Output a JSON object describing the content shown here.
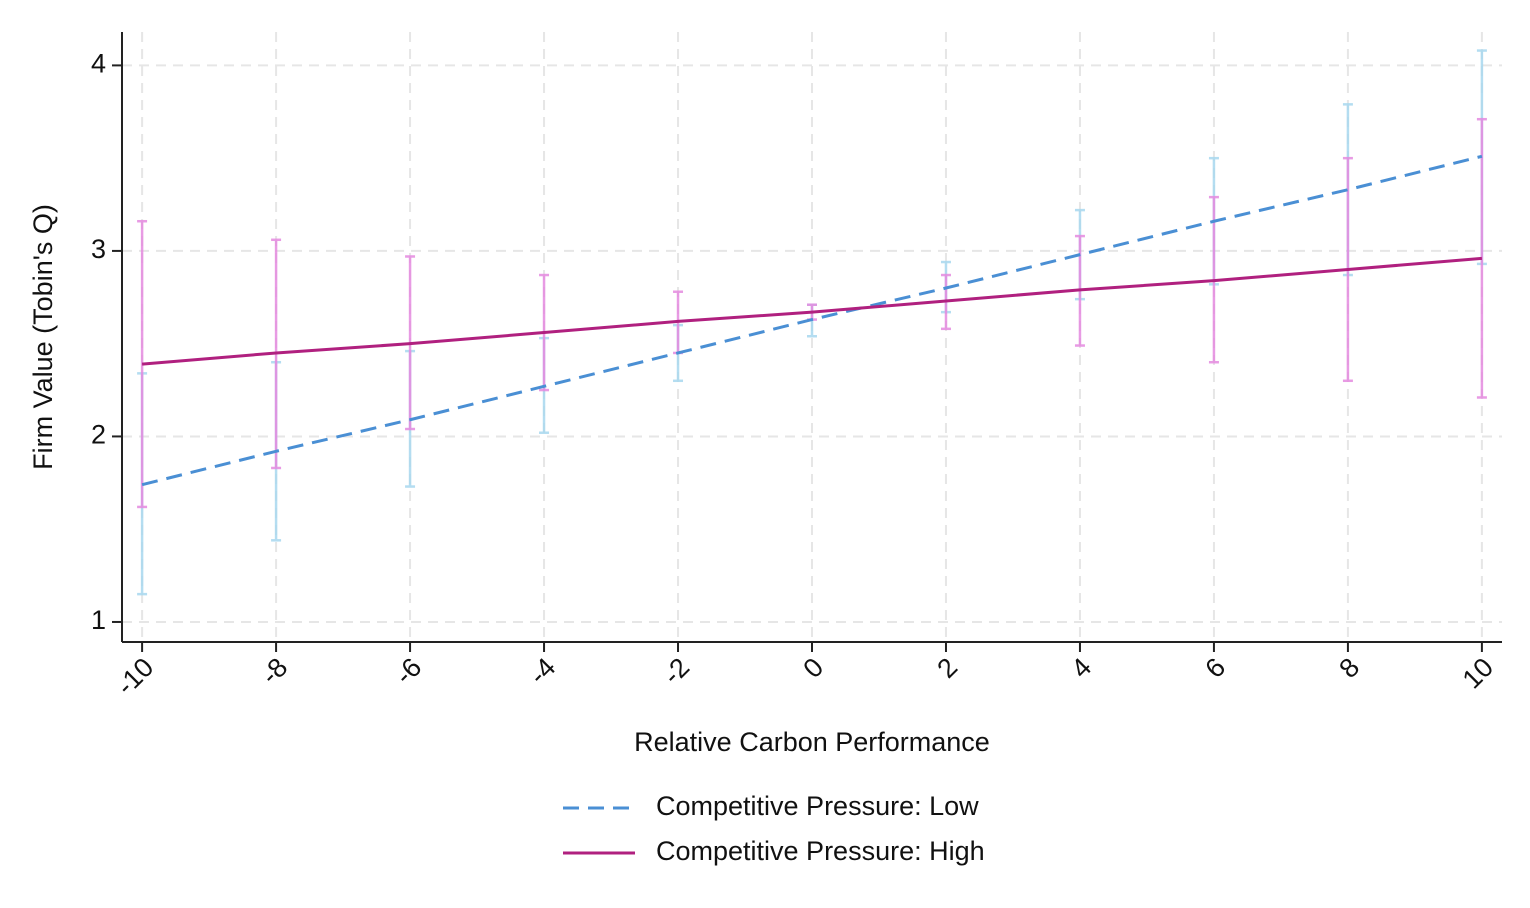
{
  "chart_data": {
    "type": "line",
    "x_label": "Relative Carbon Performance",
    "y_label": "Firm Value (Tobin's Q)",
    "x": [
      -10,
      -8,
      -6,
      -4,
      -2,
      0,
      2,
      4,
      6,
      8,
      10
    ],
    "series": [
      {
        "name": "Competitive Pressure: Low",
        "color": "#4a8fd4",
        "ci_color": "#a8d8ef",
        "line_style": "dashed",
        "values": [
          1.74,
          1.92,
          2.09,
          2.27,
          2.45,
          2.63,
          2.8,
          2.98,
          3.16,
          3.33,
          3.51
        ],
        "lower": [
          1.15,
          1.44,
          1.73,
          2.02,
          2.3,
          2.54,
          2.67,
          2.74,
          2.82,
          2.87,
          2.93
        ],
        "upper": [
          2.34,
          2.4,
          2.46,
          2.53,
          2.6,
          2.71,
          2.94,
          3.22,
          3.5,
          3.79,
          4.08
        ]
      },
      {
        "name": "Competitive Pressure: High",
        "color": "#b0207f",
        "ci_color": "#e58ae0",
        "line_style": "solid",
        "values": [
          2.39,
          2.45,
          2.5,
          2.56,
          2.62,
          2.67,
          2.73,
          2.79,
          2.84,
          2.9,
          2.96
        ],
        "lower": [
          1.62,
          1.83,
          2.04,
          2.25,
          2.45,
          2.63,
          2.58,
          2.49,
          2.4,
          2.3,
          2.21
        ],
        "upper": [
          3.16,
          3.06,
          2.97,
          2.87,
          2.78,
          2.71,
          2.87,
          3.08,
          3.29,
          3.5,
          3.71
        ]
      }
    ],
    "xlim": [
      -10.3,
      10.3
    ],
    "xticks": [
      -10,
      -8,
      -6,
      -4,
      -2,
      0,
      2,
      4,
      6,
      8,
      10
    ],
    "ylim": [
      0.892,
      4.18
    ],
    "yticks": [
      1,
      2,
      3,
      4
    ],
    "grid": true,
    "legend": "bottom"
  }
}
